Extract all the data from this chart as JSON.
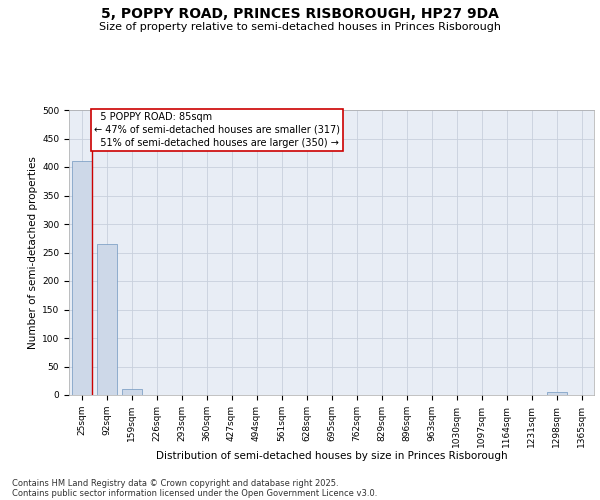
{
  "title": "5, POPPY ROAD, PRINCES RISBOROUGH, HP27 9DA",
  "subtitle": "Size of property relative to semi-detached houses in Princes Risborough",
  "xlabel": "Distribution of semi-detached houses by size in Princes Risborough",
  "ylabel": "Number of semi-detached properties",
  "categories": [
    "25sqm",
    "92sqm",
    "159sqm",
    "226sqm",
    "293sqm",
    "360sqm",
    "427sqm",
    "494sqm",
    "561sqm",
    "628sqm",
    "695sqm",
    "762sqm",
    "829sqm",
    "896sqm",
    "963sqm",
    "1030sqm",
    "1097sqm",
    "1164sqm",
    "1231sqm",
    "1298sqm",
    "1365sqm"
  ],
  "values": [
    410,
    265,
    10,
    0,
    0,
    0,
    0,
    0,
    0,
    0,
    0,
    0,
    0,
    0,
    0,
    0,
    0,
    0,
    0,
    5,
    0
  ],
  "bar_color": "#cdd8e8",
  "bar_edge_color": "#7096c0",
  "bar_edge_width": 0.5,
  "grid_color": "#c8d0dc",
  "background_color": "#e8edf5",
  "ylim": [
    0,
    500
  ],
  "subject_label": "5 POPPY ROAD: 85sqm",
  "pct_smaller": 47,
  "count_smaller": 317,
  "pct_larger": 51,
  "count_larger": 350,
  "annotation_line_color": "#cc0000",
  "annotation_box_edge_color": "#cc0000",
  "footnote_line1": "Contains HM Land Registry data © Crown copyright and database right 2025.",
  "footnote_line2": "Contains public sector information licensed under the Open Government Licence v3.0.",
  "title_fontsize": 10,
  "subtitle_fontsize": 8,
  "tick_fontsize": 6.5,
  "ylabel_fontsize": 7.5,
  "xlabel_fontsize": 7.5,
  "annotation_fontsize": 7,
  "footnote_fontsize": 6
}
